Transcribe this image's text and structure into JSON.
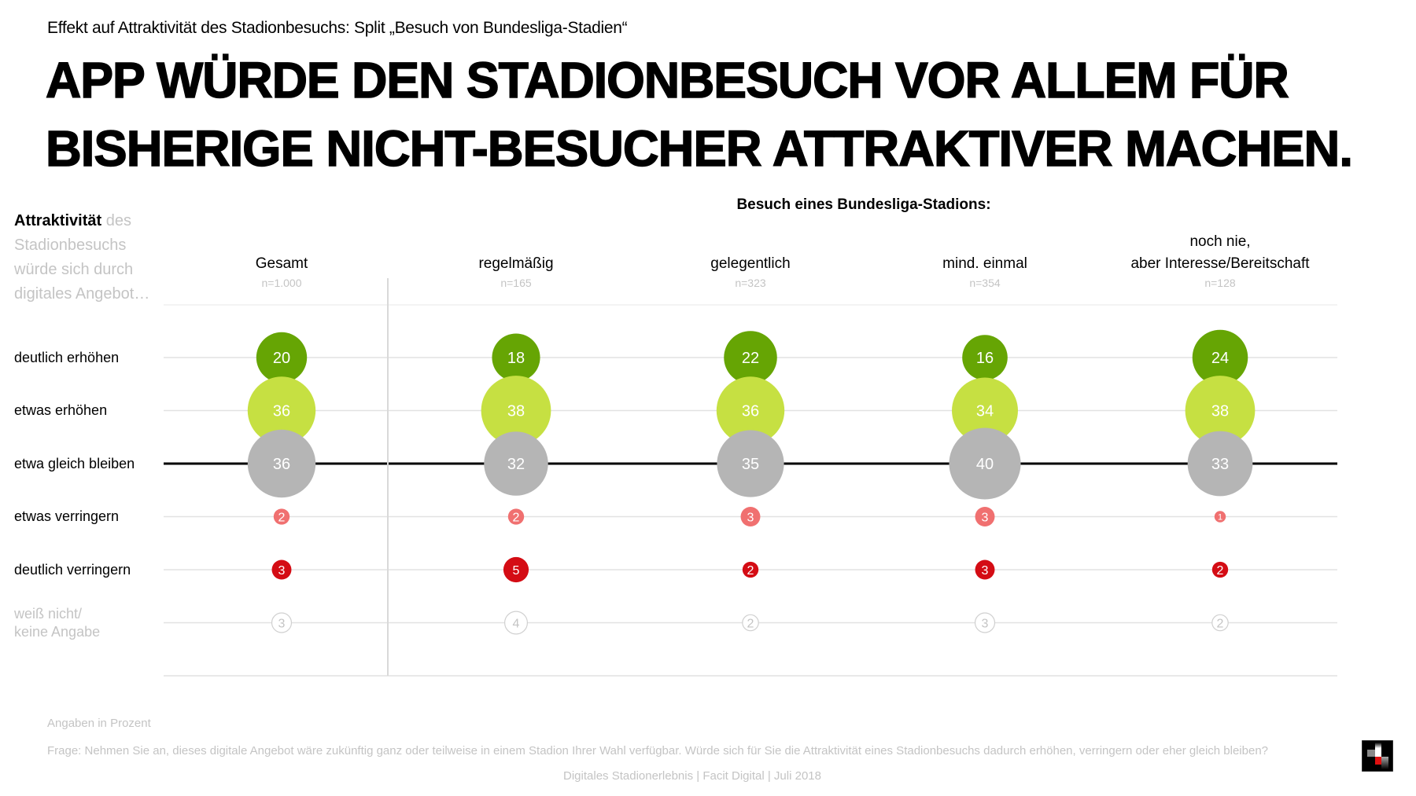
{
  "subtitle": "Effekt auf Attraktivität des Stadionbesuchs: Split „Besuch von Bundesliga-Stadien“",
  "title": {
    "line1": "APP WÜRDE DEN STADIONBESUCH VOR ALLEM FÜR",
    "line2": "BISHERIGE NICHT-BESUCHER ATTRAKTIVER MACHEN."
  },
  "left_header": {
    "bold": "Attraktivität",
    "rest_line1": " des",
    "line2": "Stadionbesuchs",
    "line3": "würde sich durch",
    "line4": "digitales Angebot…"
  },
  "colors": {
    "deutlich_erhoehen": "#66a504",
    "etwas_erhoehen": "#c6e042",
    "gleich": "#b5b5b5",
    "etwas_verringern": "#f07070",
    "deutlich_verringern": "#d40c14",
    "weiss_nicht_stroke": "#d0d0d0",
    "weiss_nicht_text": "#c4c4c4",
    "gridline": "#e2e2e2",
    "baseline": "#000000"
  },
  "chart_data": {
    "type": "bubble-matrix",
    "title": "APP WÜRDE DEN STADIONBESUCH VOR ALLEM FÜR BISHERIGE NICHT-BESUCHER ATTRAKTIVER MACHEN.",
    "group_header": "Besuch eines Bundesliga-Stadions:",
    "unit": "Prozent",
    "columns": [
      {
        "label_line1": "",
        "label_line2": "Gesamt",
        "n": "n=1.000"
      },
      {
        "label_line1": "",
        "label_line2": "regelmäßig",
        "n": "n=165"
      },
      {
        "label_line1": "",
        "label_line2": "gelegentlich",
        "n": "n=323"
      },
      {
        "label_line1": "",
        "label_line2": "mind. einmal",
        "n": "n=354"
      },
      {
        "label_line1": "noch nie,",
        "label_line2": "aber Interesse/Bereitschaft",
        "n": "n=128"
      }
    ],
    "rows": [
      {
        "key": "deutlich_erhoehen",
        "label_line1": "deutlich erhöhen",
        "label_line2": "",
        "muted": false
      },
      {
        "key": "etwas_erhoehen",
        "label_line1": "etwas erhöhen",
        "label_line2": "",
        "muted": false
      },
      {
        "key": "gleich",
        "label_line1": "etwa gleich bleiben",
        "label_line2": "",
        "muted": false
      },
      {
        "key": "etwas_verringern",
        "label_line1": "etwas verringern",
        "label_line2": "",
        "muted": false
      },
      {
        "key": "deutlich_verringern",
        "label_line1": "deutlich verringern",
        "label_line2": "",
        "muted": false
      },
      {
        "key": "weiss_nicht",
        "label_line1": "weiß nicht/",
        "label_line2": "keine Angabe",
        "muted": true
      }
    ],
    "values": [
      [
        20,
        18,
        22,
        16,
        24
      ],
      [
        36,
        38,
        36,
        34,
        38
      ],
      [
        36,
        32,
        35,
        40,
        33
      ],
      [
        2,
        2,
        3,
        3,
        1
      ],
      [
        3,
        5,
        2,
        3,
        2
      ],
      [
        3,
        4,
        2,
        3,
        2
      ]
    ],
    "baseline_row": "gleich"
  },
  "footer": {
    "note": "Angaben in Prozent",
    "question": "Frage: Nehmen Sie an, dieses digitale Angebot wäre zukünftig ganz oder teilweise in einem Stadion Ihrer Wahl verfügbar. Würde sich für Sie die Attraktivität eines Stadionbesuchs dadurch erhöhen, verringern oder eher gleich bleiben?",
    "source": "Digitales Stadionerlebnis | Facit Digital | Juli 2018"
  },
  "logo": {
    "name": "facit-digital-logo"
  }
}
